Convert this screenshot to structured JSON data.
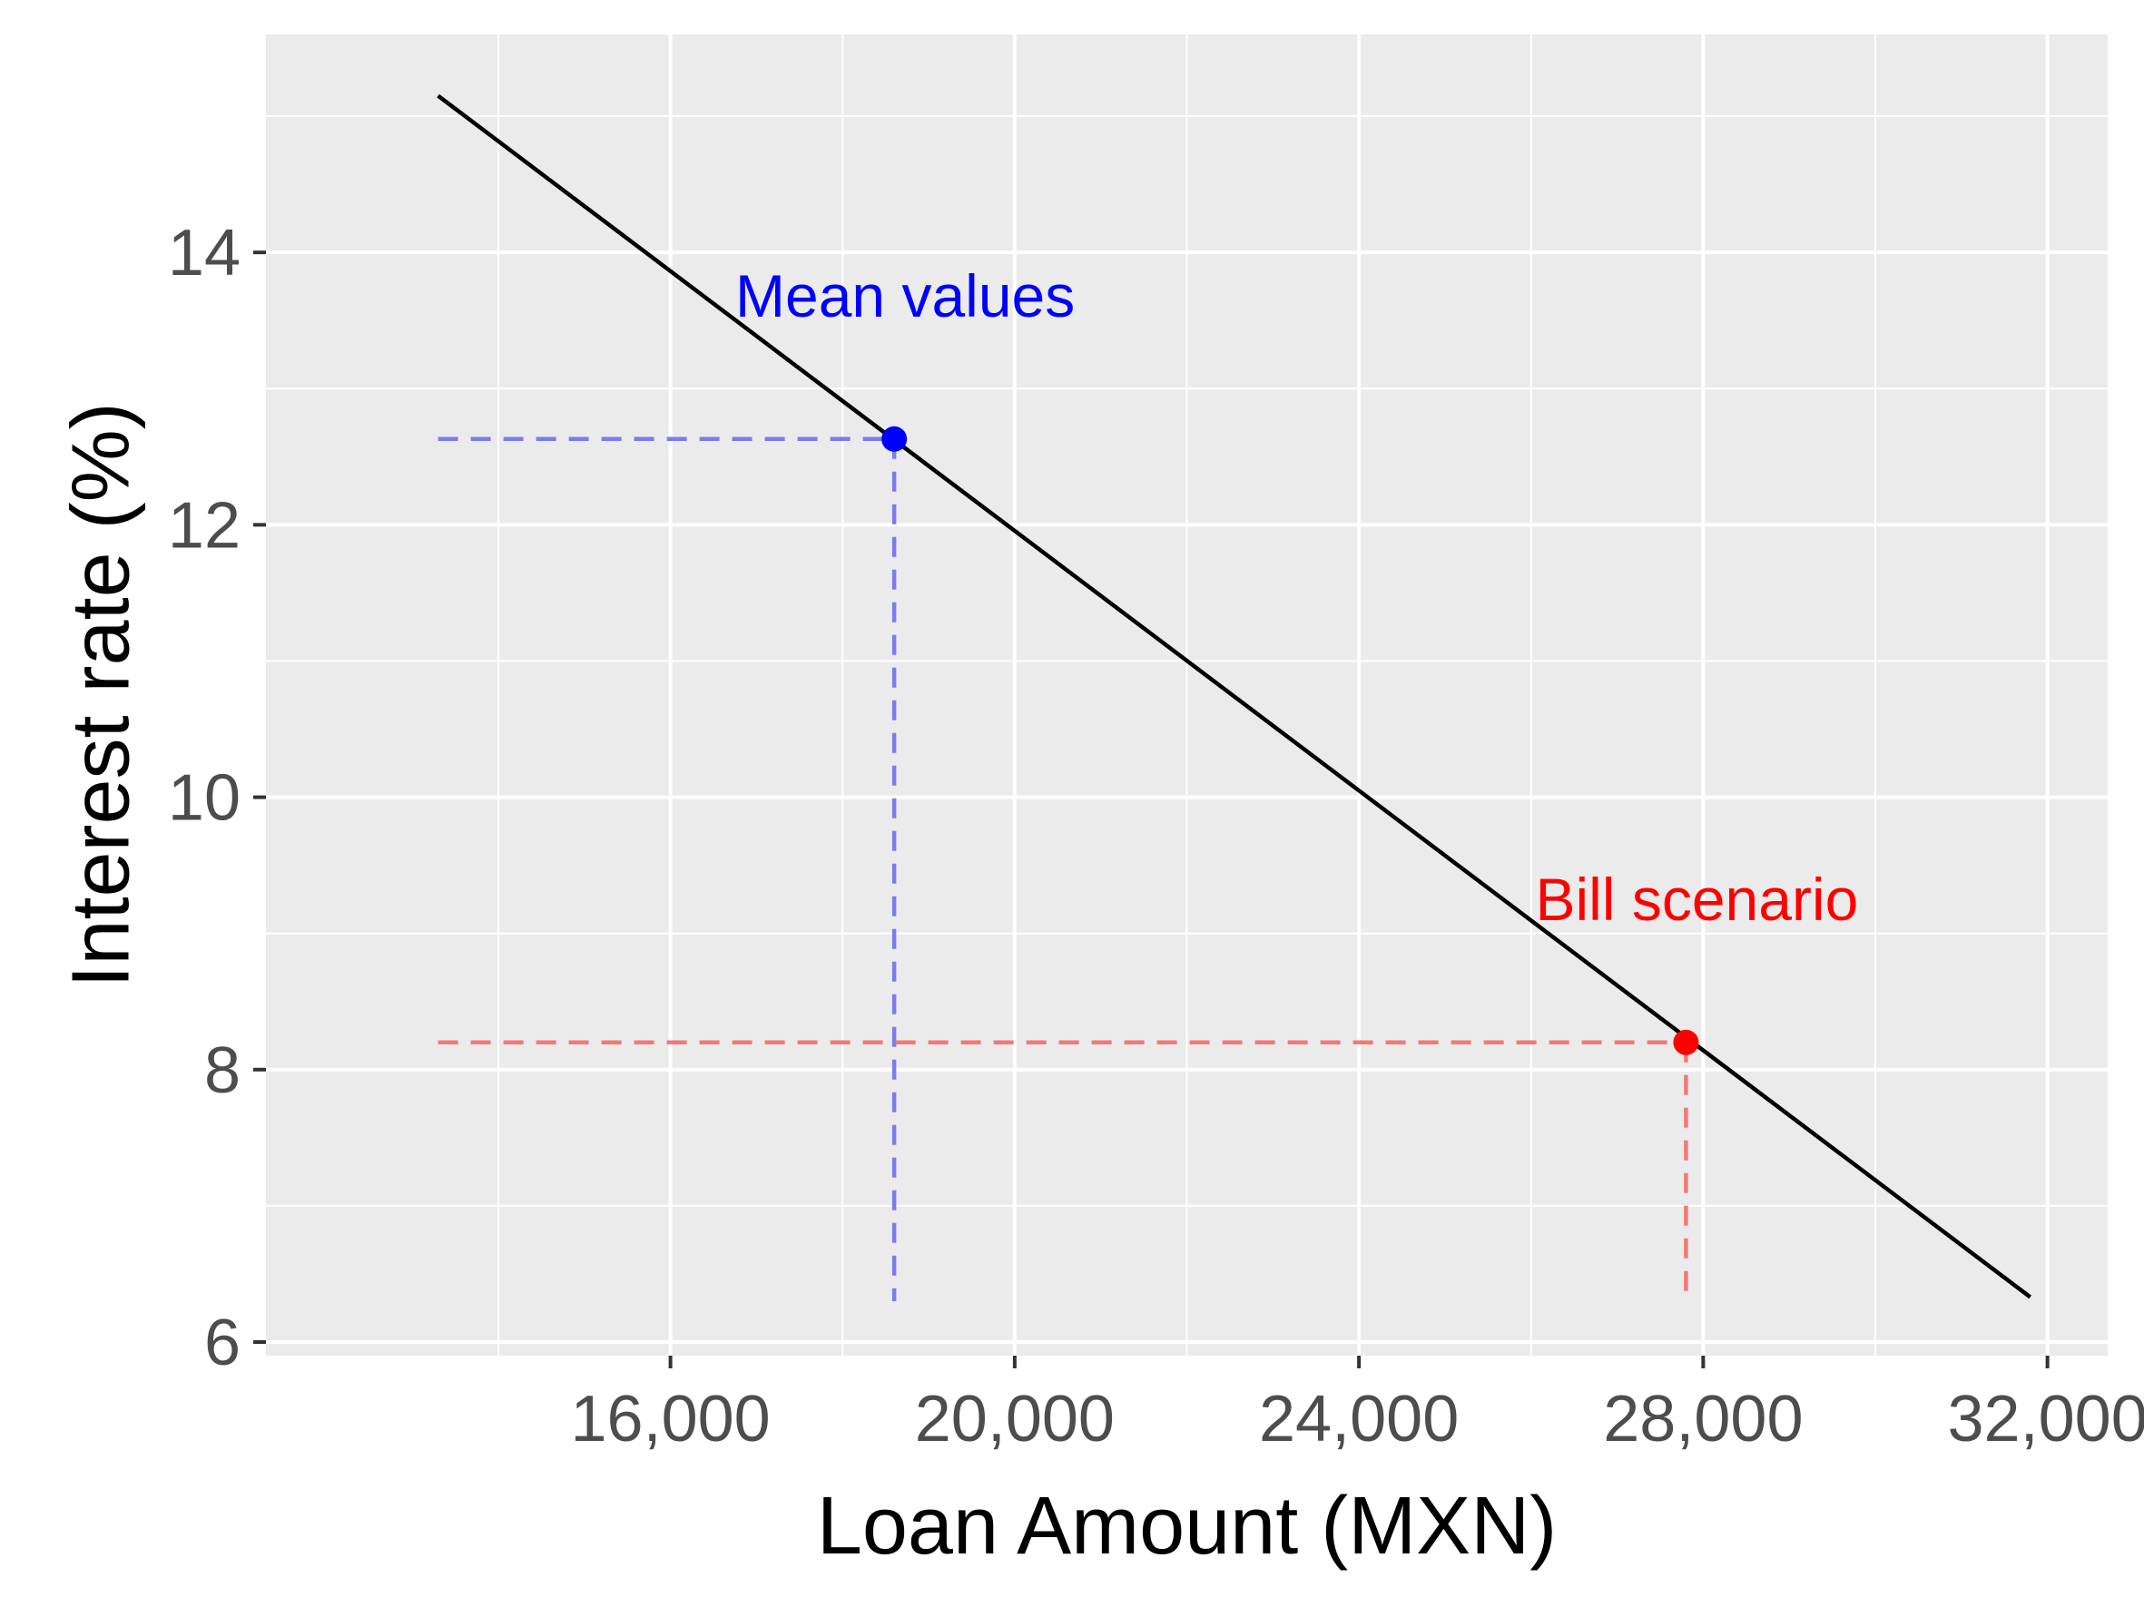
{
  "chart_data": {
    "type": "line",
    "title": "",
    "xlabel": "Loan Amount (MXN)",
    "ylabel": "Interest rate (%)",
    "xlim": [
      11300,
      32700
    ],
    "ylim": [
      5.9,
      15.6
    ],
    "x_major_ticks": [
      16000,
      20000,
      24000,
      28000,
      32000
    ],
    "x_tick_labels": [
      "16,000",
      "20,000",
      "24,000",
      "28,000",
      "32,000"
    ],
    "y_major_ticks": [
      6,
      8,
      10,
      12,
      14
    ],
    "y_tick_labels": [
      "6",
      "8",
      "10",
      "12",
      "14"
    ],
    "x_minor_ticks": [
      14000,
      18000,
      22000,
      26000,
      30000
    ],
    "y_minor_ticks": [
      7,
      9,
      11,
      13,
      15
    ],
    "grid": true,
    "background": "#ebebeb",
    "series": [
      {
        "x": [
          13300,
          31800
        ],
        "y": [
          15.15,
          6.33
        ],
        "color": "#000000"
      }
    ],
    "points": [
      {
        "label": "Mean values",
        "x": 18600,
        "y": 12.63,
        "color": "#0000ff",
        "guide_color": "#7b7bef"
      },
      {
        "label": "Bill scenario",
        "x": 27800,
        "y": 8.2,
        "color": "#ff0000",
        "guide_color": "#f47778"
      }
    ],
    "guide_floor_y": 6.3,
    "guide_start_x": 13300
  }
}
